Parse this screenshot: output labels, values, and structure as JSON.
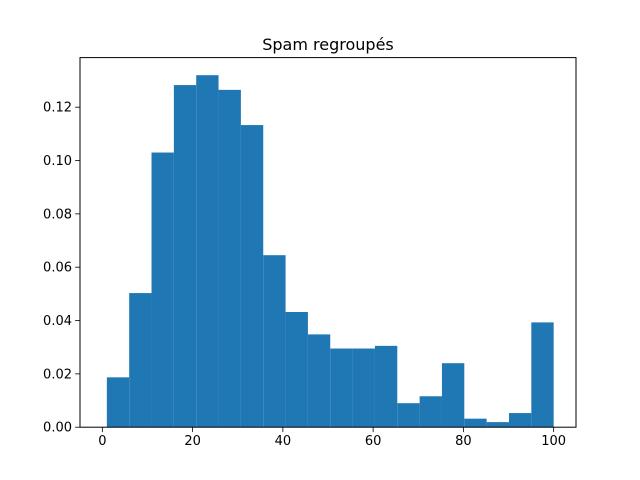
{
  "chart_data": {
    "type": "bar",
    "title": "Spam regroupés",
    "xlabel": "",
    "ylabel": "",
    "xlim": [
      -4.95,
      104.95
    ],
    "ylim": [
      0,
      0.1386
    ],
    "grid": false,
    "color": "#1f77b4",
    "xticks": [
      0,
      20,
      40,
      60,
      80,
      100
    ],
    "xtick_labels": [
      "0",
      "20",
      "40",
      "60",
      "80",
      "100"
    ],
    "yticks": [
      0.0,
      0.02,
      0.04,
      0.06,
      0.08,
      0.1,
      0.12
    ],
    "ytick_labels": [
      "0.00",
      "0.02",
      "0.04",
      "0.06",
      "0.08",
      "0.10",
      "0.12"
    ],
    "bin_edges": [
      1.0,
      5.95,
      10.9,
      15.85,
      20.8,
      25.75,
      30.7,
      35.65,
      40.6,
      45.55,
      50.5,
      55.45,
      60.4,
      65.35,
      70.3,
      75.25,
      80.2,
      85.15,
      90.1,
      95.05,
      100.0
    ],
    "values": [
      0.0187,
      0.0503,
      0.103,
      0.1283,
      0.132,
      0.1265,
      0.1133,
      0.0645,
      0.0432,
      0.0348,
      0.0295,
      0.0295,
      0.0305,
      0.009,
      0.0116,
      0.024,
      0.0032,
      0.0019,
      0.0053,
      0.0393
    ]
  }
}
